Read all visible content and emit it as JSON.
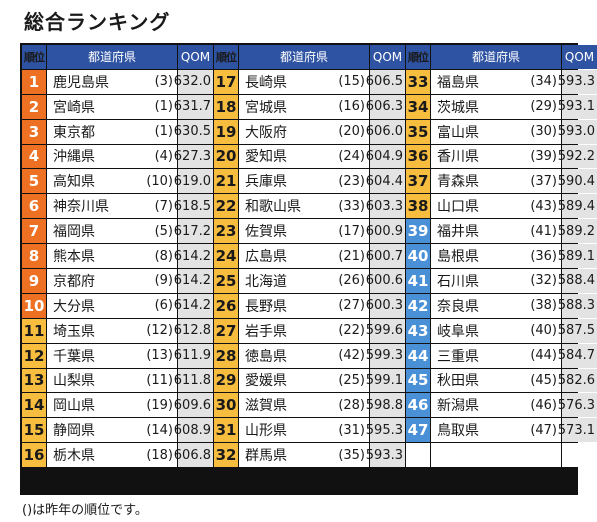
{
  "title": "総合ランキング",
  "headers": {
    "rank": "順位",
    "pref": "都道府県",
    "score": "QOM"
  },
  "note": "()は昨年の順位です。",
  "colors": {
    "top10": "#ee7023",
    "middle": "#f7bd3f",
    "bottom": "#4a90d6",
    "header": "#2f53a3"
  },
  "columns": [
    {
      "rows": [
        {
          "rank": "1",
          "pref": "鹿児島県",
          "prev": "(3)",
          "score": "632.0",
          "tier": "top10"
        },
        {
          "rank": "2",
          "pref": "宮崎県",
          "prev": "(1)",
          "score": "631.7",
          "tier": "top10"
        },
        {
          "rank": "3",
          "pref": "東京都",
          "prev": "(1)",
          "score": "630.5",
          "tier": "top10"
        },
        {
          "rank": "4",
          "pref": "沖縄県",
          "prev": "(4)",
          "score": "627.3",
          "tier": "top10"
        },
        {
          "rank": "5",
          "pref": "高知県",
          "prev": "(10)",
          "score": "619.0",
          "tier": "top10"
        },
        {
          "rank": "6",
          "pref": "神奈川県",
          "prev": "(7)",
          "score": "618.5",
          "tier": "top10"
        },
        {
          "rank": "7",
          "pref": "福岡県",
          "prev": "(5)",
          "score": "617.2",
          "tier": "top10"
        },
        {
          "rank": "8",
          "pref": "熊本県",
          "prev": "(8)",
          "score": "614.2",
          "tier": "top10"
        },
        {
          "rank": "9",
          "pref": "京都府",
          "prev": "(9)",
          "score": "614.2",
          "tier": "top10"
        },
        {
          "rank": "10",
          "pref": "大分県",
          "prev": "(6)",
          "score": "614.2",
          "tier": "top10"
        },
        {
          "rank": "11",
          "pref": "埼玉県",
          "prev": "(12)",
          "score": "612.8",
          "tier": "middle"
        },
        {
          "rank": "12",
          "pref": "千葉県",
          "prev": "(13)",
          "score": "611.9",
          "tier": "middle"
        },
        {
          "rank": "13",
          "pref": "山梨県",
          "prev": "(11)",
          "score": "611.8",
          "tier": "middle"
        },
        {
          "rank": "14",
          "pref": "岡山県",
          "prev": "(19)",
          "score": "609.6",
          "tier": "middle"
        },
        {
          "rank": "15",
          "pref": "静岡県",
          "prev": "(14)",
          "score": "608.9",
          "tier": "middle"
        },
        {
          "rank": "16",
          "pref": "栃木県",
          "prev": "(18)",
          "score": "606.8",
          "tier": "middle"
        }
      ]
    },
    {
      "rows": [
        {
          "rank": "17",
          "pref": "長崎県",
          "prev": "(15)",
          "score": "606.5",
          "tier": "middle"
        },
        {
          "rank": "18",
          "pref": "宮城県",
          "prev": "(16)",
          "score": "606.3",
          "tier": "middle"
        },
        {
          "rank": "19",
          "pref": "大阪府",
          "prev": "(20)",
          "score": "606.0",
          "tier": "middle"
        },
        {
          "rank": "20",
          "pref": "愛知県",
          "prev": "(24)",
          "score": "604.9",
          "tier": "middle"
        },
        {
          "rank": "21",
          "pref": "兵庫県",
          "prev": "(23)",
          "score": "604.4",
          "tier": "middle"
        },
        {
          "rank": "22",
          "pref": "和歌山県",
          "prev": "(33)",
          "score": "603.3",
          "tier": "middle"
        },
        {
          "rank": "23",
          "pref": "佐賀県",
          "prev": "(17)",
          "score": "600.9",
          "tier": "middle"
        },
        {
          "rank": "24",
          "pref": "広島県",
          "prev": "(21)",
          "score": "600.7",
          "tier": "middle"
        },
        {
          "rank": "25",
          "pref": "北海道",
          "prev": "(26)",
          "score": "600.6",
          "tier": "middle"
        },
        {
          "rank": "26",
          "pref": "長野県",
          "prev": "(27)",
          "score": "600.3",
          "tier": "middle"
        },
        {
          "rank": "27",
          "pref": "岩手県",
          "prev": "(22)",
          "score": "599.6",
          "tier": "middle"
        },
        {
          "rank": "28",
          "pref": "徳島県",
          "prev": "(42)",
          "score": "599.3",
          "tier": "middle"
        },
        {
          "rank": "29",
          "pref": "愛媛県",
          "prev": "(25)",
          "score": "599.1",
          "tier": "middle"
        },
        {
          "rank": "30",
          "pref": "滋賀県",
          "prev": "(28)",
          "score": "598.8",
          "tier": "middle"
        },
        {
          "rank": "31",
          "pref": "山形県",
          "prev": "(31)",
          "score": "595.3",
          "tier": "middle"
        },
        {
          "rank": "32",
          "pref": "群馬県",
          "prev": "(35)",
          "score": "593.3",
          "tier": "middle"
        }
      ]
    },
    {
      "rows": [
        {
          "rank": "33",
          "pref": "福島県",
          "prev": "(34)",
          "score": "593.3",
          "tier": "middle"
        },
        {
          "rank": "34",
          "pref": "茨城県",
          "prev": "(29)",
          "score": "593.1",
          "tier": "middle"
        },
        {
          "rank": "35",
          "pref": "富山県",
          "prev": "(30)",
          "score": "593.0",
          "tier": "middle"
        },
        {
          "rank": "36",
          "pref": "香川県",
          "prev": "(39)",
          "score": "592.2",
          "tier": "middle"
        },
        {
          "rank": "37",
          "pref": "青森県",
          "prev": "(37)",
          "score": "590.4",
          "tier": "middle"
        },
        {
          "rank": "38",
          "pref": "山口県",
          "prev": "(43)",
          "score": "589.4",
          "tier": "middle"
        },
        {
          "rank": "39",
          "pref": "福井県",
          "prev": "(41)",
          "score": "589.2",
          "tier": "bottom"
        },
        {
          "rank": "40",
          "pref": "島根県",
          "prev": "(36)",
          "score": "589.1",
          "tier": "bottom"
        },
        {
          "rank": "41",
          "pref": "石川県",
          "prev": "(32)",
          "score": "588.4",
          "tier": "bottom"
        },
        {
          "rank": "42",
          "pref": "奈良県",
          "prev": "(38)",
          "score": "588.3",
          "tier": "bottom"
        },
        {
          "rank": "43",
          "pref": "岐阜県",
          "prev": "(40)",
          "score": "587.5",
          "tier": "bottom"
        },
        {
          "rank": "44",
          "pref": "三重県",
          "prev": "(44)",
          "score": "584.7",
          "tier": "bottom"
        },
        {
          "rank": "45",
          "pref": "秋田県",
          "prev": "(45)",
          "score": "582.6",
          "tier": "bottom"
        },
        {
          "rank": "46",
          "pref": "新潟県",
          "prev": "(46)",
          "score": "576.3",
          "tier": "bottom"
        },
        {
          "rank": "47",
          "pref": "鳥取県",
          "prev": "(47)",
          "score": "573.1",
          "tier": "bottom"
        }
      ]
    }
  ]
}
